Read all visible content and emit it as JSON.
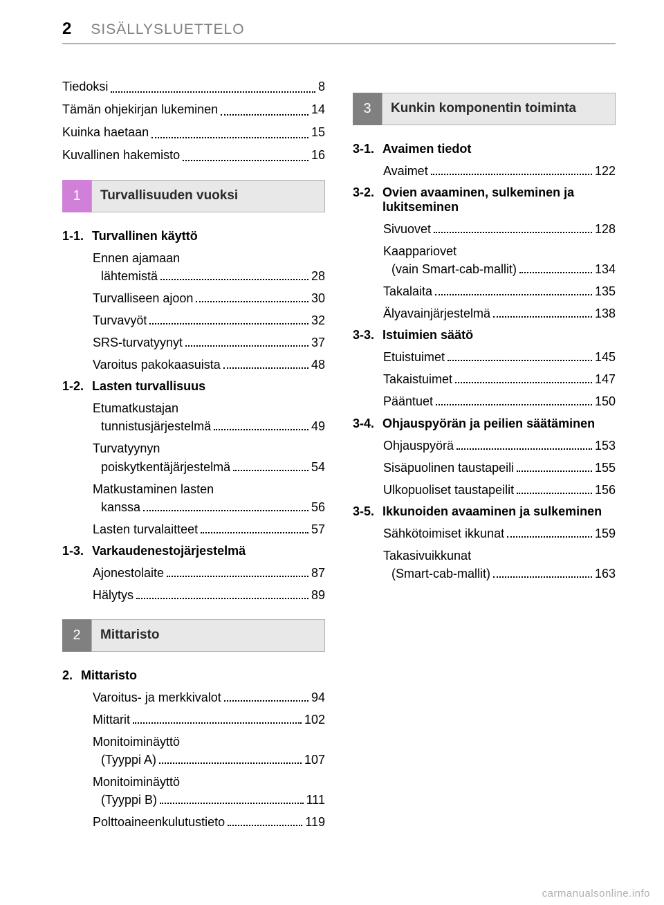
{
  "header": {
    "page_number": "2",
    "title": "SISÄLLYSLUETTELO"
  },
  "intro": [
    {
      "label": "Tiedoksi",
      "page": "8"
    },
    {
      "label": "Tämän ohjekirjan lukeminen",
      "page": "14"
    },
    {
      "label": "Kuinka haetaan",
      "page": "15"
    },
    {
      "label": "Kuvallinen hakemisto",
      "page": "16"
    }
  ],
  "section1": {
    "num": "1",
    "title": "Turvallisuuden vuoksi",
    "groups": [
      {
        "num": "1-1.",
        "title": "Turvallinen käyttö",
        "entries": [
          {
            "lines": [
              "Ennen ajamaan",
              "lähtemistä"
            ],
            "page": "28"
          },
          {
            "lines": [
              "Turvalliseen ajoon"
            ],
            "page": "30"
          },
          {
            "lines": [
              "Turvavyöt"
            ],
            "page": "32"
          },
          {
            "lines": [
              "SRS-turvatyynyt"
            ],
            "page": "37"
          },
          {
            "lines": [
              "Varoitus pakokaasuista"
            ],
            "page": "48"
          }
        ]
      },
      {
        "num": "1-2.",
        "title": "Lasten turvallisuus",
        "entries": [
          {
            "lines": [
              "Etumatkustajan",
              "tunnistusjärjestelmä"
            ],
            "page": "49"
          },
          {
            "lines": [
              "Turvatyynyn",
              "poiskytkentäjärjestelmä"
            ],
            "page": "54"
          },
          {
            "lines": [
              "Matkustaminen lasten",
              "kanssa"
            ],
            "page": "56"
          },
          {
            "lines": [
              "Lasten turvalaitteet"
            ],
            "page": "57"
          }
        ]
      },
      {
        "num": "1-3.",
        "title": "Varkaudenestojärjestelmä",
        "entries": [
          {
            "lines": [
              "Ajonestolaite"
            ],
            "page": "87"
          },
          {
            "lines": [
              "Hälytys"
            ],
            "page": "89"
          }
        ]
      }
    ]
  },
  "section2": {
    "num": "2",
    "title": "Mittaristo",
    "groups": [
      {
        "num": "2.",
        "title": "Mittaristo",
        "entries": [
          {
            "lines": [
              "Varoitus- ja merkkivalot"
            ],
            "page": "94"
          },
          {
            "lines": [
              "Mittarit"
            ],
            "page": "102"
          },
          {
            "lines": [
              "Monitoiminäyttö",
              "(Tyyppi A)"
            ],
            "page": "107"
          },
          {
            "lines": [
              "Monitoiminäyttö",
              "(Tyyppi B)"
            ],
            "page": "111"
          },
          {
            "lines": [
              "Polttoaineenkulutustieto"
            ],
            "page": "119"
          }
        ]
      }
    ]
  },
  "section3": {
    "num": "3",
    "title": "Kunkin komponentin toiminta",
    "groups": [
      {
        "num": "3-1.",
        "title": "Avaimen tiedot",
        "entries": [
          {
            "lines": [
              "Avaimet"
            ],
            "page": "122"
          }
        ]
      },
      {
        "num": "3-2.",
        "title": "Ovien avaaminen, sulkeminen ja lukitseminen",
        "entries": [
          {
            "lines": [
              "Sivuovet"
            ],
            "page": "128"
          },
          {
            "lines": [
              "Kaappariovet",
              "(vain Smart-cab-mallit)"
            ],
            "page": "134"
          },
          {
            "lines": [
              "Takalaita"
            ],
            "page": "135"
          },
          {
            "lines": [
              "Älyavainjärjestelmä"
            ],
            "page": "138"
          }
        ]
      },
      {
        "num": "3-3.",
        "title": "Istuimien säätö",
        "entries": [
          {
            "lines": [
              "Etuistuimet"
            ],
            "page": "145"
          },
          {
            "lines": [
              "Takaistuimet"
            ],
            "page": "147"
          },
          {
            "lines": [
              "Pääntuet"
            ],
            "page": "150"
          }
        ]
      },
      {
        "num": "3-4.",
        "title": "Ohjauspyörän ja peilien säätäminen",
        "entries": [
          {
            "lines": [
              "Ohjauspyörä"
            ],
            "page": "153"
          },
          {
            "lines": [
              "Sisäpuolinen taustapeili"
            ],
            "page": "155"
          },
          {
            "lines": [
              "Ulkopuoliset taustapeilit"
            ],
            "page": "156"
          }
        ]
      },
      {
        "num": "3-5.",
        "title": "Ikkunoiden avaaminen ja sulkeminen",
        "entries": [
          {
            "lines": [
              "Sähkötoimiset ikkunat"
            ],
            "page": "159"
          },
          {
            "lines": [
              "Takasivuikkunat",
              "(Smart-cab-mallit)"
            ],
            "page": "163"
          }
        ]
      }
    ]
  },
  "watermark": "carmanualsonline.info"
}
